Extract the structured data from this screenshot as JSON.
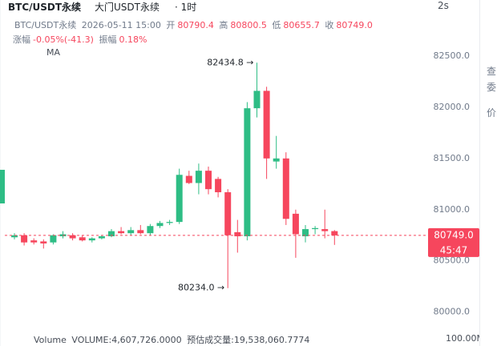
{
  "header": {
    "symbol": "BTC/USDT永续",
    "name": "大门USDT永续",
    "interval": "· 1时",
    "refresh": "2s"
  },
  "info": {
    "symbol": "BTC/USDT永续",
    "time": "2026-05-11 15:00",
    "open_label": "开",
    "open": "80790.4",
    "high_label": "高",
    "high": "80800.5",
    "low_label": "低",
    "low": "80655.7",
    "close_label": "收",
    "close": "80749.0",
    "change_label": "涨幅",
    "change": "-0.05%(-41.3)",
    "amplitude_label": "振幅",
    "amplitude": "0.18%",
    "indicator": "MA"
  },
  "volume": {
    "title": "Volume",
    "value": "VOLUME:4,607,726.0000",
    "estimate": "预估成交量:19,538,060.7774",
    "axis_max": "100.00M"
  },
  "side": [
    "查",
    "委",
    "价"
  ],
  "chart_data": {
    "type": "candlestick",
    "up_color": "#2ebd85",
    "down_color": "#f6465d",
    "ylim": [
      79700,
      83000
    ],
    "yticks": [
      {
        "value": 80000,
        "label": "80000.0"
      },
      {
        "value": 80500,
        "label": "80500.0"
      },
      {
        "value": 81000,
        "label": "81000.0"
      },
      {
        "value": 81500,
        "label": "81500.0"
      },
      {
        "value": 82000,
        "label": "82000.0"
      },
      {
        "value": 82500,
        "label": "82500.0"
      }
    ],
    "last_price": {
      "value": 80749.0,
      "label": "80749.0",
      "countdown": "45:47"
    },
    "annotations": [
      {
        "value": 82434.8,
        "label": "82434.8 →",
        "index": 25
      },
      {
        "value": 80234.0,
        "label": "80234.0 →",
        "index": 22
      }
    ],
    "candles": [
      {
        "open": 80730,
        "high": 80770,
        "low": 80710,
        "close": 80750
      },
      {
        "open": 80750,
        "high": 80770,
        "low": 80650,
        "close": 80680
      },
      {
        "open": 80700,
        "high": 80720,
        "low": 80660,
        "close": 80680
      },
      {
        "open": 80690,
        "high": 80710,
        "low": 80620,
        "close": 80670
      },
      {
        "open": 80680,
        "high": 80760,
        "low": 80660,
        "close": 80750
      },
      {
        "open": 80740,
        "high": 80790,
        "low": 80720,
        "close": 80760
      },
      {
        "open": 80750,
        "high": 80770,
        "low": 80700,
        "close": 80720
      },
      {
        "open": 80730,
        "high": 80750,
        "low": 80690,
        "close": 80700
      },
      {
        "open": 80700,
        "high": 80730,
        "low": 80680,
        "close": 80720
      },
      {
        "open": 80720,
        "high": 80750,
        "low": 80710,
        "close": 80740
      },
      {
        "open": 80740,
        "high": 80810,
        "low": 80730,
        "close": 80790
      },
      {
        "open": 80790,
        "high": 80830,
        "low": 80760,
        "close": 80770
      },
      {
        "open": 80770,
        "high": 80830,
        "low": 80750,
        "close": 80800
      },
      {
        "open": 80800,
        "high": 80850,
        "low": 80760,
        "close": 80770
      },
      {
        "open": 80770,
        "high": 80860,
        "low": 80750,
        "close": 80840
      },
      {
        "open": 80840,
        "high": 80890,
        "low": 80820,
        "close": 80870
      },
      {
        "open": 80870,
        "high": 80900,
        "low": 80850,
        "close": 80880
      },
      {
        "open": 80880,
        "high": 81400,
        "low": 80860,
        "close": 81340
      },
      {
        "open": 81330,
        "high": 81380,
        "low": 81250,
        "close": 81260
      },
      {
        "open": 81260,
        "high": 81450,
        "low": 81150,
        "close": 81380
      },
      {
        "open": 81380,
        "high": 81420,
        "low": 81150,
        "close": 81200
      },
      {
        "open": 81300,
        "high": 81320,
        "low": 81120,
        "close": 81170
      },
      {
        "open": 81170,
        "high": 81200,
        "low": 80234,
        "close": 80750
      },
      {
        "open": 80780,
        "high": 80900,
        "low": 80580,
        "close": 80740
      },
      {
        "open": 80740,
        "high": 82050,
        "low": 80700,
        "close": 81990
      },
      {
        "open": 81990,
        "high": 82434.8,
        "low": 81900,
        "close": 82160
      },
      {
        "open": 82160,
        "high": 82200,
        "low": 81300,
        "close": 81500
      },
      {
        "open": 81470,
        "high": 81720,
        "low": 81400,
        "close": 81500
      },
      {
        "open": 81500,
        "high": 81560,
        "low": 80850,
        "close": 80910
      },
      {
        "open": 80960,
        "high": 81000,
        "low": 80530,
        "close": 80760
      },
      {
        "open": 80740,
        "high": 80850,
        "low": 80680,
        "close": 80810
      },
      {
        "open": 80810,
        "high": 80840,
        "low": 80760,
        "close": 80820
      },
      {
        "open": 80810,
        "high": 81000,
        "low": 80720,
        "close": 80790
      },
      {
        "open": 80790.4,
        "high": 80800.5,
        "low": 80655.7,
        "close": 80749.0
      }
    ]
  }
}
